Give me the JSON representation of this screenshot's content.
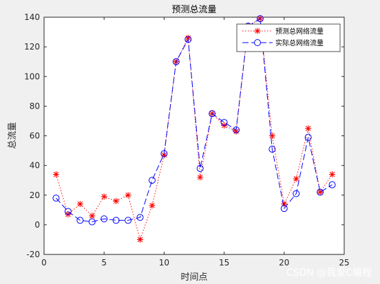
{
  "chart_data": {
    "type": "line",
    "title": "预测总流量",
    "xlabel": "时间点",
    "ylabel": "总流量",
    "xlim": [
      0,
      25
    ],
    "ylim": [
      -20,
      140
    ],
    "xticks": [
      0,
      5,
      10,
      15,
      20,
      25
    ],
    "yticks": [
      -20,
      0,
      20,
      40,
      60,
      80,
      100,
      120,
      140
    ],
    "legend_position": "top-right",
    "grid": false,
    "x": [
      1,
      2,
      3,
      4,
      5,
      6,
      7,
      8,
      9,
      10,
      11,
      12,
      13,
      14,
      15,
      16,
      17,
      18,
      19,
      20,
      21,
      22,
      23,
      24
    ],
    "series": [
      {
        "name": "预测总网络流量",
        "color": "#ff0000",
        "line_style": "dotted",
        "marker": "asterisk",
        "values": [
          34,
          7,
          14,
          6,
          19,
          16,
          20,
          -10,
          13,
          47,
          110,
          126,
          32,
          75,
          67,
          63,
          134,
          139,
          60,
          14,
          31,
          65,
          22,
          34
        ]
      },
      {
        "name": "实际总网络流量",
        "color": "#0000ff",
        "line_style": "dashed",
        "marker": "circle",
        "values": [
          18,
          9,
          3,
          2,
          4,
          3,
          3,
          5,
          30,
          48,
          110,
          125,
          38,
          75,
          69,
          64,
          134,
          139,
          51,
          11,
          21,
          59,
          22,
          27
        ]
      }
    ]
  },
  "watermark": "CSDN @我爱C编程"
}
